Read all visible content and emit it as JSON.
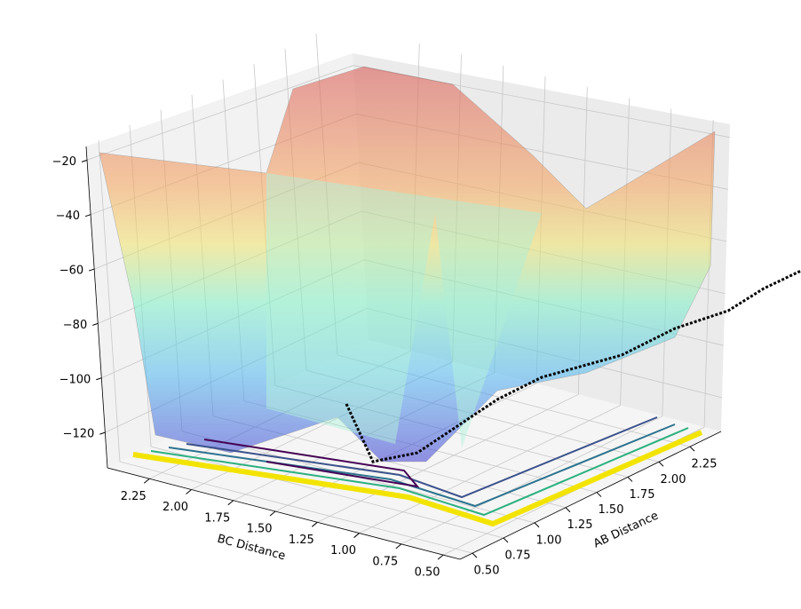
{
  "chart_data": {
    "type": "surface3d",
    "xlabel": "BC Distance",
    "ylabel": "AB Distance",
    "xlim": [
      0.4,
      2.5
    ],
    "xticks": [
      {
        "value": 0.5,
        "label": "0.50"
      },
      {
        "value": 0.75,
        "label": "0.75"
      },
      {
        "value": 1.0,
        "label": "1.00"
      },
      {
        "value": 1.25,
        "label": "1.25"
      },
      {
        "value": 1.5,
        "label": "1.50"
      },
      {
        "value": 1.75,
        "label": "1.75"
      },
      {
        "value": 2.0,
        "label": "2.00"
      },
      {
        "value": 2.25,
        "label": "2.25"
      }
    ],
    "ylim": [
      0.4,
      2.5
    ],
    "yticks": [
      {
        "value": 0.5,
        "label": "0.50"
      },
      {
        "value": 0.75,
        "label": "0.75"
      },
      {
        "value": 1.0,
        "label": "1.00"
      },
      {
        "value": 1.25,
        "label": "1.25"
      },
      {
        "value": 1.5,
        "label": "1.50"
      },
      {
        "value": 1.75,
        "label": "1.75"
      },
      {
        "value": 2.0,
        "label": "2.00"
      },
      {
        "value": 2.25,
        "label": "2.25"
      }
    ],
    "zlim": [
      -133,
      -15
    ],
    "zticks": [
      {
        "value": -120,
        "label": "−120"
      },
      {
        "value": -100,
        "label": "−100"
      },
      {
        "value": -80,
        "label": "−80"
      },
      {
        "value": -60,
        "label": "−60"
      },
      {
        "value": -40,
        "label": "−40"
      },
      {
        "value": -20,
        "label": "−20"
      }
    ],
    "grid": true
  }
}
